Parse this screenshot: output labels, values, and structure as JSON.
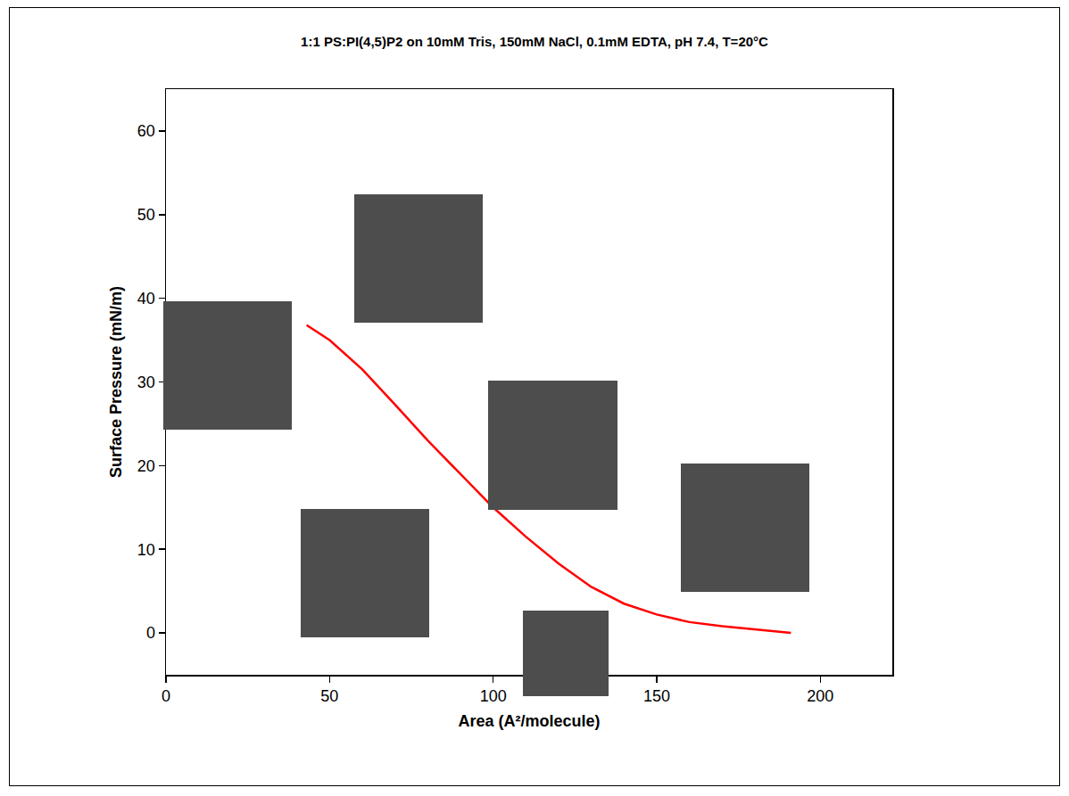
{
  "chart_data": {
    "type": "line",
    "title": "1:1 PS:PI(4,5)P2 on 10mM Tris, 150mM NaCl, 0.1mM EDTA, pH 7.4, T=20°C",
    "x_label": "Area (A²/molecule)",
    "y_label": "Surface Pressure (mN/m)",
    "x": [
      191,
      180,
      170,
      160,
      150,
      140,
      130,
      120,
      110,
      100,
      90,
      80,
      70,
      60,
      50,
      43
    ],
    "values": [
      0,
      0.4,
      0.8,
      1.3,
      2.2,
      3.5,
      5.5,
      8.3,
      11.5,
      15.0,
      19.0,
      23.0,
      27.3,
      31.5,
      35.0,
      36.8
    ],
    "color": "#ff0000",
    "xlim": [
      0,
      222
    ],
    "xticks": [
      0,
      50,
      100,
      150,
      200
    ],
    "ylim": [
      -5,
      65
    ],
    "yticks": [
      0,
      10,
      20,
      30,
      40,
      50,
      60
    ],
    "grid": false
  }
}
